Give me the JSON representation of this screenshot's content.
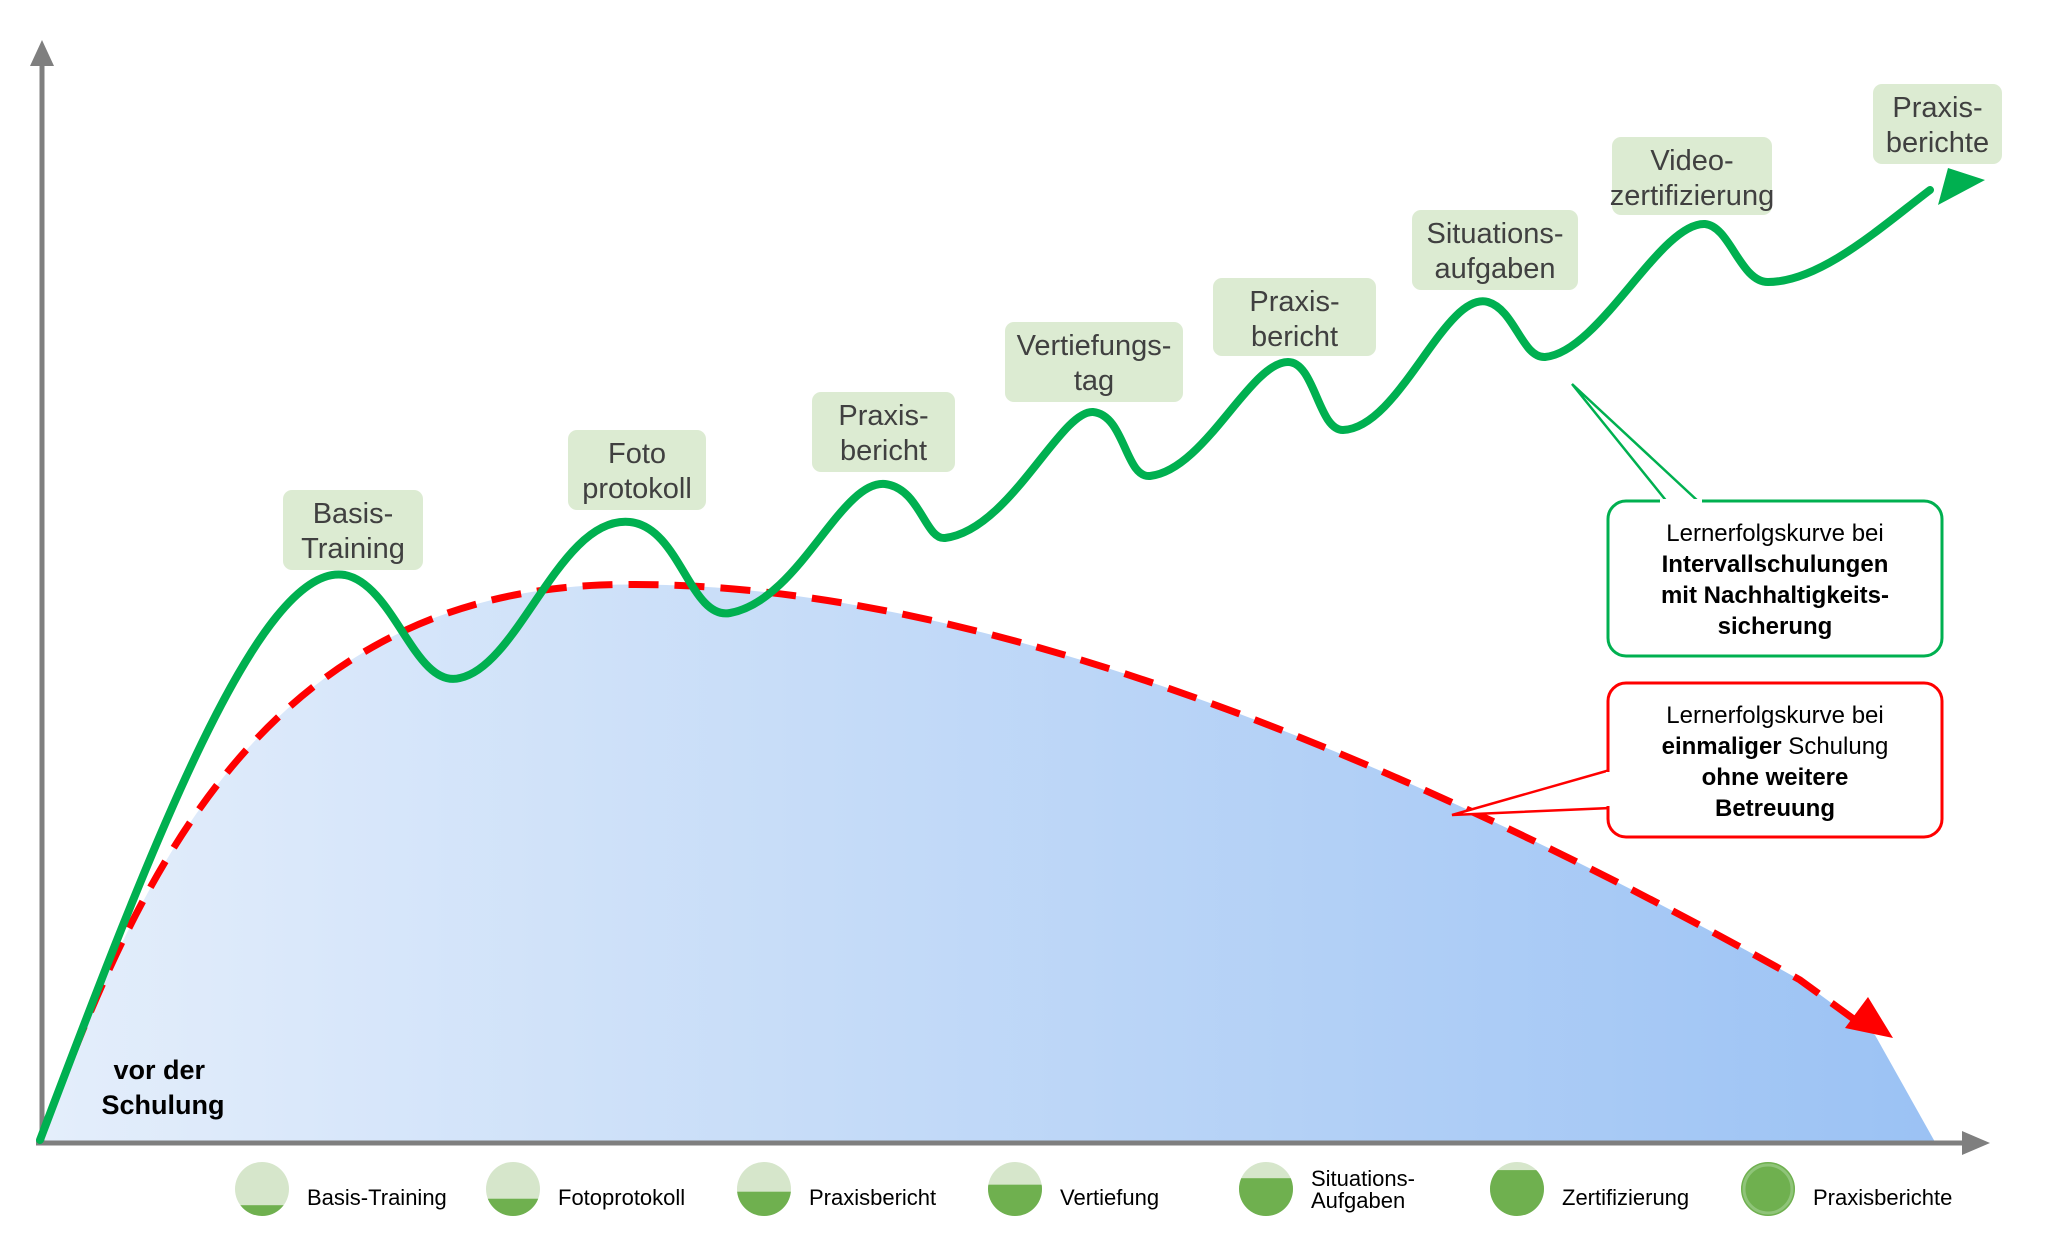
{
  "start_label": [
    "vor der",
    "Schulung"
  ],
  "milestones": [
    {
      "lines": [
        "Basis-",
        "Training"
      ]
    },
    {
      "lines": [
        "Foto",
        "protokoll"
      ]
    },
    {
      "lines": [
        "Praxis-",
        "bericht"
      ]
    },
    {
      "lines": [
        "Vertiefungs-",
        "tag"
      ]
    },
    {
      "lines": [
        "Praxis-",
        "bericht"
      ]
    },
    {
      "lines": [
        "Situations-",
        "aufgaben"
      ]
    },
    {
      "lines": [
        "Video-",
        "zertifizierung"
      ]
    },
    {
      "lines": [
        "Praxis-",
        "berichte"
      ]
    }
  ],
  "callout_green": {
    "lines": [
      {
        "text": "Lernerfolgskurve bei",
        "bold": false
      },
      {
        "text": "Intervallschulungen",
        "bold": true
      },
      {
        "text": "mit Nachhaltigkeits-",
        "bold": true
      },
      {
        "text": "sicherung",
        "bold": true
      }
    ]
  },
  "callout_red": {
    "lines": [
      [
        {
          "text": "Lernerfolgskurve bei",
          "bold": false
        }
      ],
      [
        {
          "text": "einmaliger",
          "bold": true
        },
        {
          "text": " Schulung",
          "bold": false
        }
      ],
      [
        {
          "text": "ohne weitere",
          "bold": true
        }
      ],
      [
        {
          "text": "Betreuung",
          "bold": true
        }
      ]
    ]
  },
  "legend": [
    {
      "lines": [
        "Basis-Training"
      ],
      "fill": 0.2
    },
    {
      "lines": [
        "Fotoprotokoll"
      ],
      "fill": 0.32
    },
    {
      "lines": [
        "Praxisbericht"
      ],
      "fill": 0.45
    },
    {
      "lines": [
        "Vertiefung"
      ],
      "fill": 0.58
    },
    {
      "lines": [
        "Situations-",
        "Aufgaben"
      ],
      "fill": 0.7
    },
    {
      "lines": [
        "Zertifizierung"
      ],
      "fill": 0.85
    },
    {
      "lines": [
        "Praxisberichte"
      ],
      "fill": 1.0
    }
  ],
  "colors": {
    "green": "#00b050",
    "red": "#ff0000",
    "axis": "#7f7f7f",
    "label_bg": "#dcebd2",
    "label_text": "#404040",
    "area_left": "#e4eefb",
    "area_right": "#9bc2f4",
    "legend_light": "#d6e6cb",
    "legend_dark": "#6fb04f"
  }
}
